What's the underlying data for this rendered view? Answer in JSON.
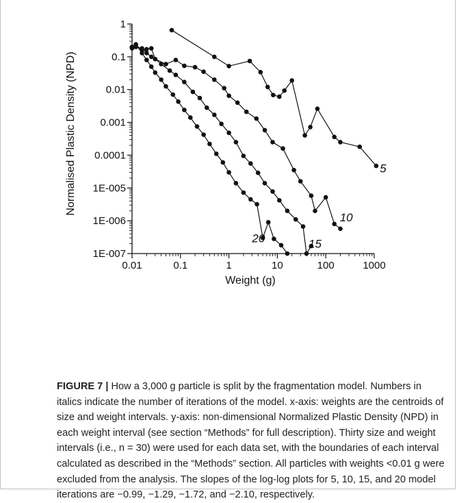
{
  "chart_data": {
    "type": "line",
    "xlabel": "Weight (g)",
    "ylabel": "Normalised Plastic Density (NPD)",
    "x_scale": "log",
    "y_scale": "log",
    "xlim": [
      0.01,
      1000
    ],
    "ylim": [
      1e-07,
      1
    ],
    "grid": false,
    "x_ticks": [
      {
        "value": 0.01,
        "label": "0.01"
      },
      {
        "value": 0.1,
        "label": "0.1"
      },
      {
        "value": 1,
        "label": "1"
      },
      {
        "value": 10,
        "label": "10"
      },
      {
        "value": 100,
        "label": "100"
      },
      {
        "value": 1000,
        "label": "1000"
      }
    ],
    "y_ticks": [
      {
        "value": 1,
        "label": "1"
      },
      {
        "value": 0.1,
        "label": "0.1"
      },
      {
        "value": 0.01,
        "label": "0.01"
      },
      {
        "value": 0.001,
        "label": "0.001"
      },
      {
        "value": 0.0001,
        "label": "0.0001"
      },
      {
        "value": 1e-05,
        "label": "1E-005"
      },
      {
        "value": 1e-06,
        "label": "1E-006"
      },
      {
        "value": 1e-07,
        "label": "1E-007"
      }
    ],
    "series": [
      {
        "label": "5",
        "label_at": [
          1300,
          3e-05
        ],
        "points": [
          [
            0.066,
            0.65
          ],
          [
            0.5,
            0.1
          ],
          [
            1.0,
            0.052
          ],
          [
            2.7,
            0.074
          ],
          [
            4.5,
            0.034
          ],
          [
            6.3,
            0.012
          ],
          [
            8.2,
            0.0068
          ],
          [
            11,
            0.0061
          ],
          [
            14,
            0.0093
          ],
          [
            20,
            0.019
          ],
          [
            37,
            0.0004
          ],
          [
            48,
            0.00072
          ],
          [
            67,
            0.0026
          ],
          [
            150,
            0.00036
          ],
          [
            200,
            0.00025
          ],
          [
            500,
            0.00018
          ],
          [
            1100,
            4.7e-05
          ]
        ]
      },
      {
        "label": "10",
        "label_at": [
          195,
          9.5e-07
        ],
        "points": [
          [
            0.01,
            0.2
          ],
          [
            0.012,
            0.23
          ],
          [
            0.016,
            0.16
          ],
          [
            0.02,
            0.17
          ],
          [
            0.025,
            0.18
          ],
          [
            0.03,
            0.085
          ],
          [
            0.05,
            0.06
          ],
          [
            0.08,
            0.08
          ],
          [
            0.12,
            0.053
          ],
          [
            0.2,
            0.048
          ],
          [
            0.3,
            0.035
          ],
          [
            0.5,
            0.02
          ],
          [
            0.8,
            0.011
          ],
          [
            1.0,
            0.0065
          ],
          [
            1.5,
            0.004
          ],
          [
            2.3,
            0.0021
          ],
          [
            3.7,
            0.0013
          ],
          [
            5.5,
            0.00058
          ],
          [
            8,
            0.00025
          ],
          [
            13,
            0.00016
          ],
          [
            22,
            3.5e-05
          ],
          [
            30,
            1.6e-05
          ],
          [
            50,
            5.8e-06
          ],
          [
            60,
            2e-06
          ],
          [
            100,
            5.2e-06
          ],
          [
            150,
            8e-07
          ],
          [
            200,
            5.7e-07
          ]
        ]
      },
      {
        "label": "15",
        "label_at": [
          44,
          1.5e-07
        ],
        "points": [
          [
            0.01,
            0.2
          ],
          [
            0.012,
            0.2
          ],
          [
            0.016,
            0.18
          ],
          [
            0.02,
            0.13
          ],
          [
            0.025,
            0.1
          ],
          [
            0.03,
            0.085
          ],
          [
            0.04,
            0.06
          ],
          [
            0.06,
            0.038
          ],
          [
            0.08,
            0.028
          ],
          [
            0.12,
            0.017
          ],
          [
            0.18,
            0.0085
          ],
          [
            0.25,
            0.0055
          ],
          [
            0.35,
            0.0028
          ],
          [
            0.5,
            0.0017
          ],
          [
            0.7,
            0.0009
          ],
          [
            1.0,
            0.00048
          ],
          [
            1.4,
            0.00025
          ],
          [
            2.0,
            9.5e-05
          ],
          [
            2.8,
            5.6e-05
          ],
          [
            4.0,
            2.9e-05
          ],
          [
            5.5,
            1.4e-05
          ],
          [
            8.0,
            7.8e-06
          ],
          [
            11,
            4.2e-06
          ],
          [
            16,
            2e-06
          ],
          [
            24,
            1.1e-06
          ],
          [
            34,
            6.7e-07
          ],
          [
            40,
            1e-07
          ],
          [
            50,
            1.7e-07
          ]
        ]
      },
      {
        "label": "20",
        "label_at": [
          3.0,
          2.2e-07
        ],
        "points": [
          [
            0.01,
            0.18
          ],
          [
            0.012,
            0.24
          ],
          [
            0.016,
            0.13
          ],
          [
            0.02,
            0.08
          ],
          [
            0.025,
            0.05
          ],
          [
            0.03,
            0.033
          ],
          [
            0.04,
            0.02
          ],
          [
            0.05,
            0.0125
          ],
          [
            0.07,
            0.007
          ],
          [
            0.09,
            0.0043
          ],
          [
            0.12,
            0.0024
          ],
          [
            0.16,
            0.0014
          ],
          [
            0.22,
            0.00075
          ],
          [
            0.3,
            0.00042
          ],
          [
            0.4,
            0.00022
          ],
          [
            0.55,
            0.00011
          ],
          [
            0.75,
            6e-05
          ],
          [
            1.0,
            3e-05
          ],
          [
            1.4,
            1.4e-05
          ],
          [
            2.0,
            7.2e-06
          ],
          [
            2.8,
            4.5e-06
          ],
          [
            3.8,
            3.2e-06
          ],
          [
            5.0,
            3e-07
          ],
          [
            6.5,
            9e-07
          ],
          [
            8.5,
            2.8e-07
          ],
          [
            12,
            1.8e-07
          ],
          [
            16,
            1e-07
          ]
        ]
      }
    ]
  },
  "caption": {
    "figure_label": "FIGURE 7 |",
    "text": " How a 3,000 g particle is split by the fragmentation model. Numbers in italics indicate the number of iterations of the model. x-axis: weights are the centroids of size and weight intervals. y-axis: non-dimensional Normalized Plastic Density (NPD) in each weight interval (see section “Methods” for full description). Thirty size and weight intervals (i.e., n = 30) were used for each data set, with the boundaries of each interval calculated as described in the “Methods” section. All particles with weights <0.01 g were excluded from the analysis. The slopes of the log-log plots for 5, 10, 15, and 20 model iterations are −0.99, −1.29, −1.72, and −2.10, respectively."
  }
}
